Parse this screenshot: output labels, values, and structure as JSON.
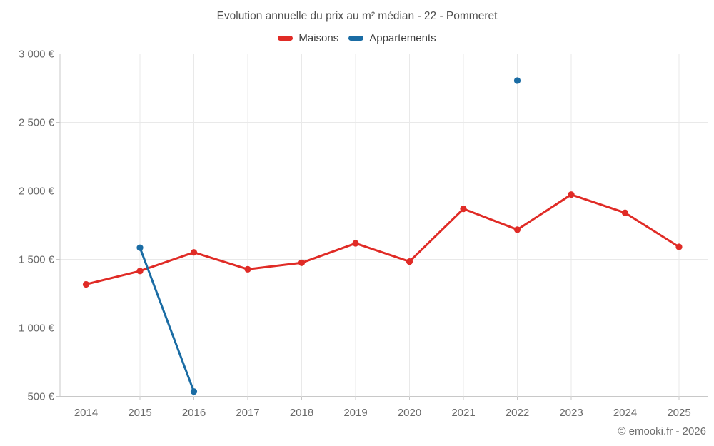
{
  "page": {
    "title": "Evolution annuelle du prix au m² médian - 22 - Pommeret",
    "footer": "© emooki.fr - 2026"
  },
  "legend": [
    {
      "label": "Maisons",
      "color": "#e02b26"
    },
    {
      "label": "Appartements",
      "color": "#1a6ca4"
    }
  ],
  "chart_data": {
    "type": "line",
    "title": "Evolution annuelle du prix au m² médian - 22 - Pommeret",
    "x": [
      2014,
      2015,
      2016,
      2017,
      2018,
      2019,
      2020,
      2021,
      2022,
      2023,
      2024,
      2025
    ],
    "series": [
      {
        "name": "Maisons",
        "color": "#e02b26",
        "values": [
          1318,
          1415,
          1551,
          1428,
          1475,
          1617,
          1484,
          1869,
          1717,
          1973,
          1840,
          1591
        ]
      },
      {
        "name": "Appartements",
        "color": "#1a6ca4",
        "values": [
          null,
          1585,
          535,
          null,
          null,
          null,
          null,
          null,
          2805,
          null,
          null,
          null
        ]
      }
    ],
    "ylim": [
      500,
      3000
    ],
    "yticks": [
      500,
      1000,
      1500,
      2000,
      2500,
      3000
    ],
    "ytick_labels": [
      "500 €",
      "1 000 €",
      "1 500 €",
      "2 000 €",
      "2 500 €",
      "3 000 €"
    ],
    "grid": true,
    "legend_position": "top",
    "marker": "circle"
  }
}
